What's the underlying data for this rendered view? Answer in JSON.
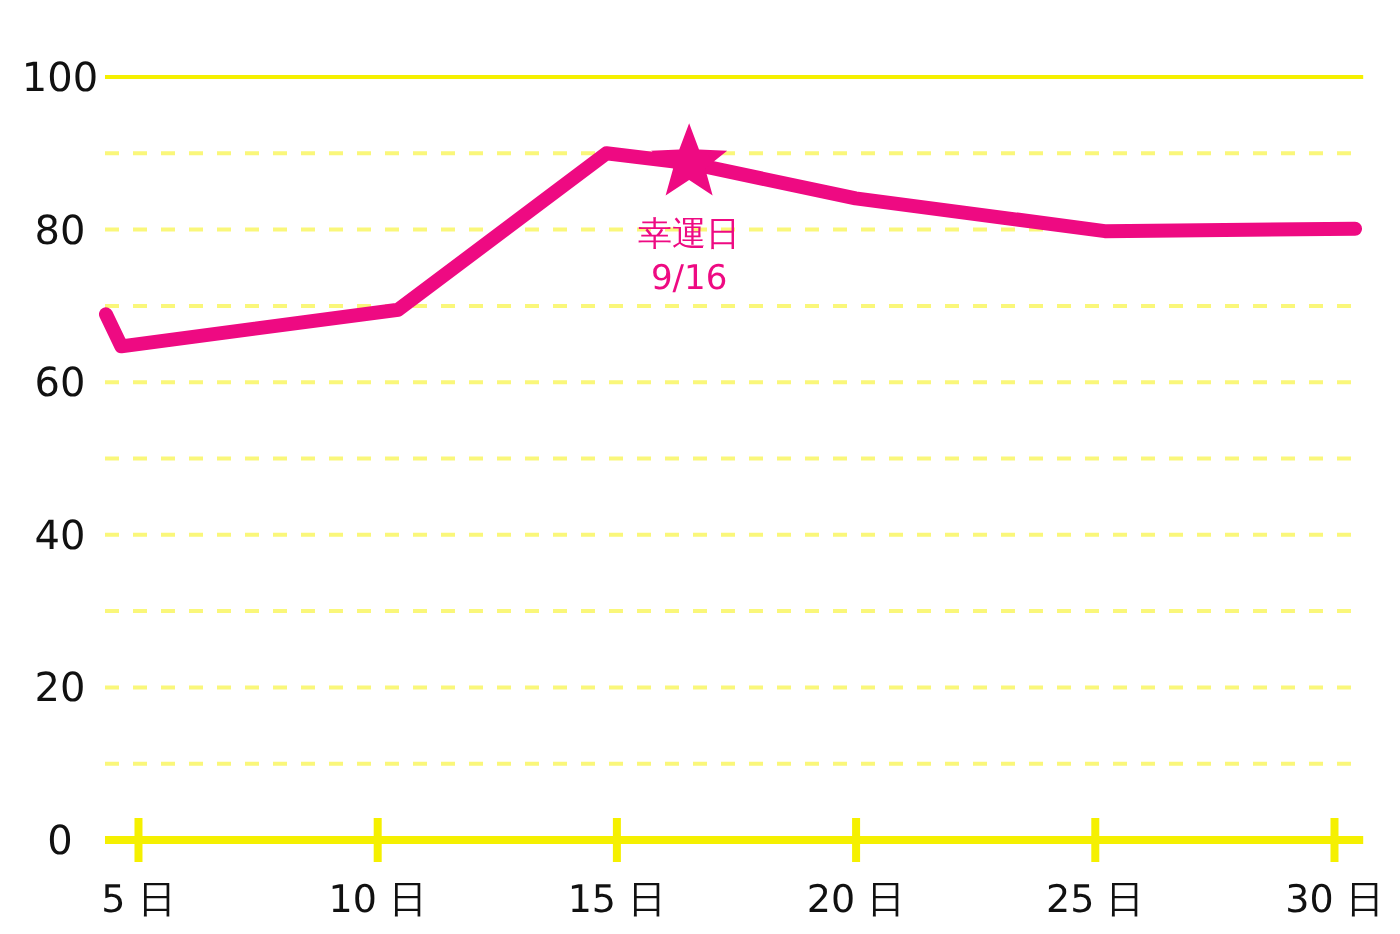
{
  "chart_data": {
    "type": "line",
    "x": [
      4.32,
      4.64,
      10.43,
      14.78,
      16.51,
      19.99,
      25.2,
      30.43
    ],
    "series": [
      {
        "color": "#ee0a82",
        "values": [
          68.9,
          64.7,
          69.5,
          90.0,
          88.7,
          84.1,
          79.8,
          80.1
        ]
      },
      {
        "type": "scatter",
        "color": "#ee0a82",
        "marker": "star",
        "x": [
          16.51
        ],
        "values": [
          88.7
        ]
      }
    ],
    "xlim": [
      4.3,
      30.6
    ],
    "xticks": [
      {
        "value": 5,
        "label": "5 日"
      },
      {
        "value": 10,
        "label": "10 日"
      },
      {
        "value": 15,
        "label": "15 日"
      },
      {
        "value": 20,
        "label": "20 日"
      },
      {
        "value": 25,
        "label": "25 日"
      },
      {
        "value": 30,
        "label": "30 日"
      }
    ],
    "ylim": [
      0,
      100
    ],
    "yticks": [
      0,
      {
        "value": 10,
        "label": null
      },
      20,
      {
        "value": 30,
        "label": null
      },
      40,
      {
        "value": 50,
        "label": null
      },
      60,
      {
        "value": 70,
        "label": null
      },
      80,
      {
        "value": 90,
        "label": null
      },
      100
    ],
    "grid": "y",
    "marker": "none",
    "line_style": "solid",
    "annotations": [
      {
        "text": "幸運日\n9/16",
        "x": 16.51,
        "y": 88.7
      }
    ]
  }
}
